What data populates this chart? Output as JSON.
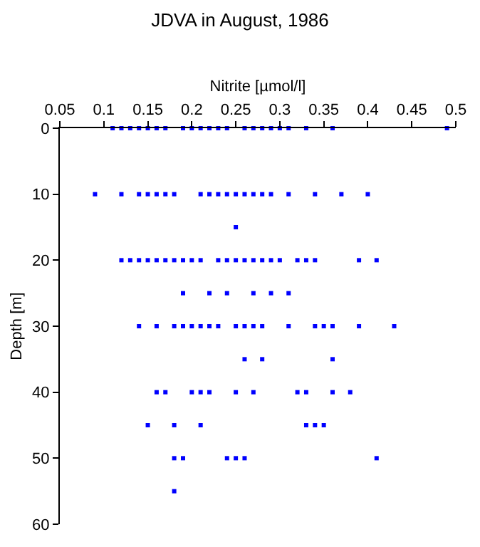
{
  "chart_data": {
    "type": "scatter",
    "title": "JDVA in August, 1986",
    "xlabel": "Nitrite [µmol/l]",
    "ylabel": "Depth [m]",
    "xlim": [
      0.05,
      0.5
    ],
    "xticks": [
      0.05,
      0.1,
      0.15,
      0.2,
      0.25,
      0.3,
      0.35,
      0.4,
      0.45,
      0.5
    ],
    "ylim": [
      60,
      0
    ],
    "yticks": [
      0,
      10,
      20,
      30,
      40,
      50,
      60
    ],
    "marker": "square",
    "series": [
      {
        "color": "#0000ff",
        "x": [
          0.11,
          0.12,
          0.13,
          0.14,
          0.15,
          0.16,
          0.17,
          0.19,
          0.2,
          0.21,
          0.22,
          0.23,
          0.24,
          0.26,
          0.27,
          0.28,
          0.29,
          0.3,
          0.31,
          0.33,
          0.36,
          0.49,
          0.09,
          0.12,
          0.14,
          0.15,
          0.16,
          0.17,
          0.18,
          0.21,
          0.22,
          0.23,
          0.24,
          0.25,
          0.26,
          0.27,
          0.28,
          0.29,
          0.31,
          0.34,
          0.37,
          0.4,
          0.25,
          0.12,
          0.13,
          0.14,
          0.15,
          0.16,
          0.17,
          0.18,
          0.19,
          0.2,
          0.21,
          0.23,
          0.24,
          0.25,
          0.26,
          0.27,
          0.28,
          0.29,
          0.3,
          0.32,
          0.33,
          0.34,
          0.39,
          0.41,
          0.19,
          0.22,
          0.24,
          0.27,
          0.29,
          0.31,
          0.14,
          0.16,
          0.18,
          0.19,
          0.2,
          0.21,
          0.22,
          0.23,
          0.25,
          0.26,
          0.27,
          0.28,
          0.31,
          0.34,
          0.35,
          0.36,
          0.39,
          0.43,
          0.26,
          0.28,
          0.36,
          0.16,
          0.17,
          0.2,
          0.21,
          0.22,
          0.25,
          0.27,
          0.32,
          0.33,
          0.36,
          0.38,
          0.15,
          0.18,
          0.21,
          0.33,
          0.34,
          0.35,
          0.18,
          0.19,
          0.24,
          0.25,
          0.26,
          0.41,
          0.18
        ],
        "values": [
          0,
          0,
          0,
          0,
          0,
          0,
          0,
          0,
          0,
          0,
          0,
          0,
          0,
          0,
          0,
          0,
          0,
          0,
          0,
          0,
          0,
          0,
          10,
          10,
          10,
          10,
          10,
          10,
          10,
          10,
          10,
          10,
          10,
          10,
          10,
          10,
          10,
          10,
          10,
          10,
          10,
          10,
          15,
          20,
          20,
          20,
          20,
          20,
          20,
          20,
          20,
          20,
          20,
          20,
          20,
          20,
          20,
          20,
          20,
          20,
          20,
          20,
          20,
          20,
          20,
          20,
          25,
          25,
          25,
          25,
          25,
          25,
          30,
          30,
          30,
          30,
          30,
          30,
          30,
          30,
          30,
          30,
          30,
          30,
          30,
          30,
          30,
          30,
          30,
          30,
          35,
          35,
          35,
          40,
          40,
          40,
          40,
          40,
          40,
          40,
          40,
          40,
          40,
          40,
          45,
          45,
          45,
          45,
          45,
          45,
          50,
          50,
          50,
          50,
          50,
          50,
          55
        ]
      }
    ]
  }
}
